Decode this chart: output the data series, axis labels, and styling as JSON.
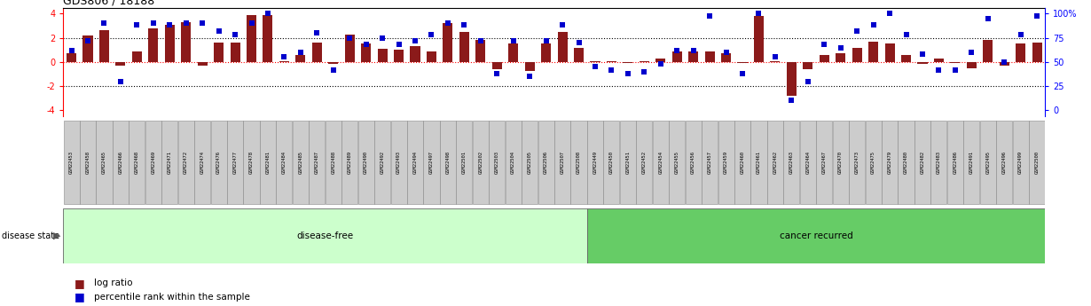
{
  "title": "GDS806 / 18188",
  "samples": [
    "GSM22453",
    "GSM22458",
    "GSM22465",
    "GSM22466",
    "GSM22468",
    "GSM22469",
    "GSM22471",
    "GSM22472",
    "GSM22474",
    "GSM22476",
    "GSM22477",
    "GSM22478",
    "GSM22481",
    "GSM22484",
    "GSM22485",
    "GSM22487",
    "GSM22488",
    "GSM22489",
    "GSM22490",
    "GSM22492",
    "GSM22493",
    "GSM22494",
    "GSM22497",
    "GSM22498",
    "GSM22501",
    "GSM22502",
    "GSM22503",
    "GSM22504",
    "GSM22505",
    "GSM22506",
    "GSM22507",
    "GSM22508",
    "GSM22449",
    "GSM22450",
    "GSM22451",
    "GSM22452",
    "GSM22454",
    "GSM22455",
    "GSM22456",
    "GSM22457",
    "GSM22459",
    "GSM22460",
    "GSM22461",
    "GSM22462",
    "GSM22463",
    "GSM22464",
    "GSM22467",
    "GSM22470",
    "GSM22473",
    "GSM22475",
    "GSM22479",
    "GSM22480",
    "GSM22482",
    "GSM22483",
    "GSM22486",
    "GSM22491",
    "GSM22495",
    "GSM22496",
    "GSM22499",
    "GSM22500"
  ],
  "log_ratio": [
    0.7,
    2.2,
    2.65,
    -0.3,
    0.85,
    2.8,
    3.1,
    3.3,
    -0.3,
    1.6,
    1.6,
    3.9,
    3.9,
    0.1,
    0.55,
    1.6,
    -0.15,
    2.3,
    1.5,
    1.1,
    1.0,
    1.3,
    0.85,
    3.2,
    2.5,
    1.8,
    -0.6,
    1.5,
    -0.75,
    1.5,
    2.5,
    1.2,
    0.05,
    0.1,
    -0.05,
    0.1,
    0.3,
    0.9,
    0.9,
    0.9,
    0.7,
    -0.05,
    3.8,
    0.1,
    -2.8,
    -0.6,
    0.55,
    0.7,
    1.2,
    1.7,
    1.55,
    0.6,
    -0.15,
    0.3,
    -0.1,
    -0.5,
    1.8,
    -0.3,
    1.55,
    1.6
  ],
  "percentile": [
    62,
    72,
    90,
    30,
    88,
    90,
    88,
    90,
    90,
    82,
    78,
    90,
    100,
    55,
    60,
    80,
    42,
    75,
    68,
    75,
    68,
    72,
    78,
    90,
    88,
    72,
    38,
    72,
    35,
    72,
    88,
    70,
    45,
    42,
    38,
    40,
    48,
    62,
    62,
    98,
    60,
    38,
    100,
    55,
    10,
    30,
    68,
    65,
    82,
    88,
    100,
    78,
    58,
    42,
    42,
    60,
    95,
    50,
    78,
    98
  ],
  "disease_free_count": 32,
  "bar_color": "#8B1A1A",
  "dot_color": "#0000CD",
  "ylim_lo": -4.5,
  "ylim_hi": 4.5,
  "pct_lo": 0,
  "pct_hi": 100,
  "disease_free_color": "#CCFFCC",
  "cancer_color": "#66CC66",
  "label_disease_free": "disease-free",
  "label_cancer": "cancer recurred",
  "label_disease_state": "disease state",
  "legend_bar": "log ratio",
  "legend_dot": "percentile rank within the sample"
}
